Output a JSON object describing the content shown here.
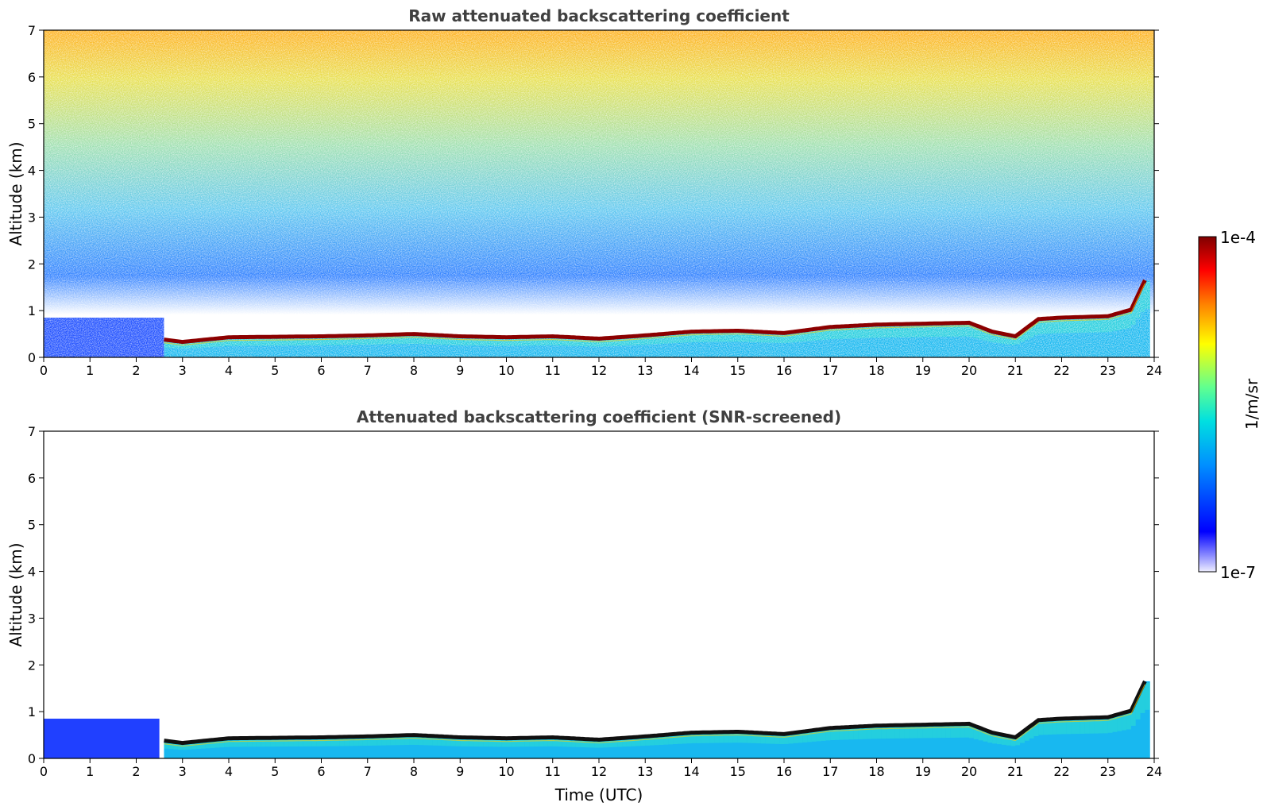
{
  "chart_data": [
    {
      "type": "heatmap",
      "title": "Raw attenuated backscattering coefficient",
      "xlabel": "",
      "ylabel": "Altitude (km)",
      "xlim": [
        0,
        24
      ],
      "ylim": [
        0,
        7
      ],
      "xticks": [
        0,
        1,
        2,
        3,
        4,
        5,
        6,
        7,
        8,
        9,
        10,
        11,
        12,
        13,
        14,
        15,
        16,
        17,
        18,
        19,
        20,
        21,
        22,
        23,
        24
      ],
      "yticks": [
        0,
        1,
        2,
        3,
        4,
        5,
        6,
        7
      ],
      "colormap": "jet",
      "noise_filled": true,
      "boundary_layer_top_km": [
        [
          2.6,
          0.38
        ],
        [
          3.0,
          0.33
        ],
        [
          3.5,
          0.38
        ],
        [
          4,
          0.43
        ],
        [
          5,
          0.44
        ],
        [
          6,
          0.45
        ],
        [
          7,
          0.47
        ],
        [
          8,
          0.5
        ],
        [
          9,
          0.45
        ],
        [
          10,
          0.43
        ],
        [
          11,
          0.45
        ],
        [
          12,
          0.4
        ],
        [
          13,
          0.47
        ],
        [
          14,
          0.55
        ],
        [
          15,
          0.57
        ],
        [
          16,
          0.52
        ],
        [
          17,
          0.65
        ],
        [
          18,
          0.7
        ],
        [
          19,
          0.72
        ],
        [
          20,
          0.74
        ],
        [
          20.5,
          0.55
        ],
        [
          21,
          0.45
        ],
        [
          21.5,
          0.82
        ],
        [
          22,
          0.85
        ],
        [
          23,
          0.88
        ],
        [
          23.5,
          1.02
        ],
        [
          23.8,
          1.65
        ]
      ]
    },
    {
      "type": "heatmap",
      "title": "Attenuated backscattering coefficient (SNR-screened)",
      "xlabel": "Time (UTC)",
      "ylabel": "Altitude (km)",
      "xlim": [
        0,
        24
      ],
      "ylim": [
        0,
        7
      ],
      "xticks": [
        0,
        1,
        2,
        3,
        4,
        5,
        6,
        7,
        8,
        9,
        10,
        11,
        12,
        13,
        14,
        15,
        16,
        17,
        18,
        19,
        20,
        21,
        22,
        23,
        24
      ],
      "yticks": [
        0,
        1,
        2,
        3,
        4,
        5,
        6,
        7
      ],
      "colormap": "jet",
      "noise_filled": false,
      "low_layer_extent_km": [
        [
          0,
          0.85
        ],
        [
          2.5,
          0.85
        ],
        [
          2.6,
          0.0
        ]
      ],
      "boundary_layer_top_km": [
        [
          2.6,
          0.38
        ],
        [
          3.0,
          0.33
        ],
        [
          3.5,
          0.38
        ],
        [
          4,
          0.43
        ],
        [
          5,
          0.44
        ],
        [
          6,
          0.45
        ],
        [
          7,
          0.47
        ],
        [
          8,
          0.5
        ],
        [
          9,
          0.45
        ],
        [
          10,
          0.43
        ],
        [
          11,
          0.45
        ],
        [
          12,
          0.4
        ],
        [
          13,
          0.47
        ],
        [
          14,
          0.55
        ],
        [
          15,
          0.57
        ],
        [
          16,
          0.52
        ],
        [
          17,
          0.65
        ],
        [
          18,
          0.7
        ],
        [
          19,
          0.72
        ],
        [
          20,
          0.74
        ],
        [
          20.5,
          0.55
        ],
        [
          21,
          0.45
        ],
        [
          21.5,
          0.82
        ],
        [
          22,
          0.85
        ],
        [
          23,
          0.88
        ],
        [
          23.5,
          1.02
        ],
        [
          23.8,
          1.65
        ]
      ]
    }
  ],
  "colorbar": {
    "label": "1/m/sr",
    "max_label": "1e-4",
    "min_label": "1e-7",
    "colors": [
      "#7f0000",
      "#ff0000",
      "#ff8000",
      "#ffff00",
      "#80ff80",
      "#00ffff",
      "#0080ff",
      "#0000ff",
      "#e8e8ff"
    ]
  }
}
